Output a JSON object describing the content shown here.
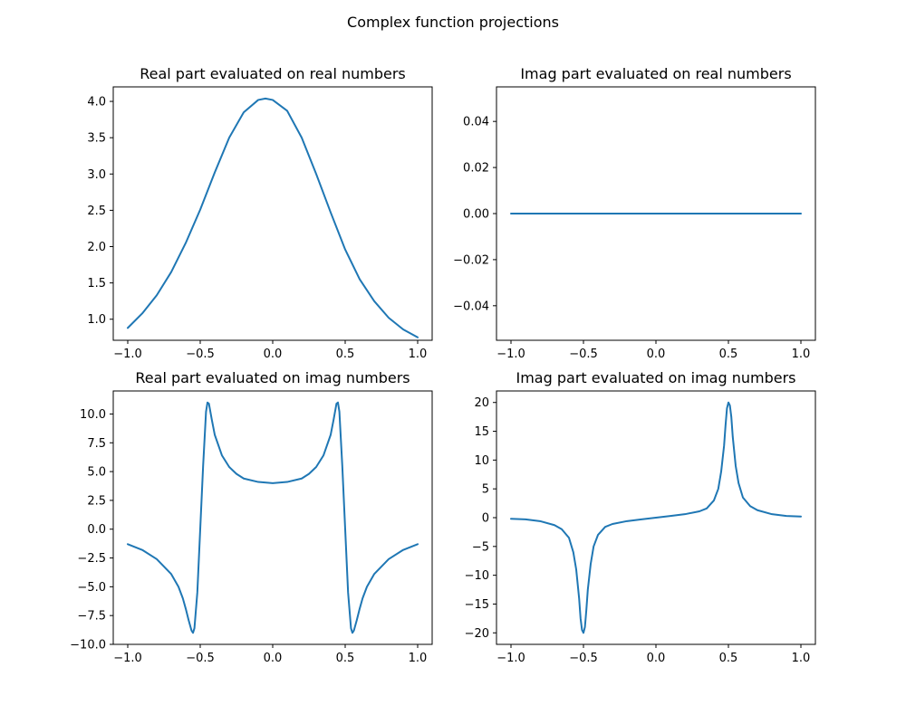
{
  "figure": {
    "suptitle": "Complex function projections"
  },
  "colors": {
    "line": "#1f77b4",
    "frame": "#000000",
    "background": "#ffffff"
  },
  "chart_data": [
    {
      "type": "line",
      "title": "Real part evaluated on real numbers",
      "xlabel": "",
      "ylabel": "",
      "grid": false,
      "xlim": [
        -1.1,
        1.1
      ],
      "ylim": [
        0.71,
        4.2
      ],
      "xticks": [
        -1.0,
        -0.5,
        0.0,
        0.5,
        1.0
      ],
      "xtick_labels": [
        "−1.0",
        "−0.5",
        "0.0",
        "0.5",
        "1.0"
      ],
      "yticks": [
        1.0,
        1.5,
        2.0,
        2.5,
        3.0,
        3.5,
        4.0
      ],
      "ytick_labels": [
        "1.0",
        "1.5",
        "2.0",
        "2.5",
        "3.0",
        "3.5",
        "4.0"
      ],
      "series": [
        {
          "x": [
            -1.0,
            -0.9,
            -0.8,
            -0.7,
            -0.6,
            -0.5,
            -0.4,
            -0.3,
            -0.2,
            -0.1,
            -0.05,
            0.0,
            0.1,
            0.2,
            0.3,
            0.4,
            0.5,
            0.6,
            0.7,
            0.8,
            0.9,
            1.0
          ],
          "values": [
            0.88,
            1.08,
            1.33,
            1.65,
            2.05,
            2.51,
            3.02,
            3.5,
            3.85,
            4.02,
            4.04,
            4.02,
            3.87,
            3.5,
            3.0,
            2.47,
            1.96,
            1.55,
            1.25,
            1.02,
            0.86,
            0.75
          ]
        }
      ]
    },
    {
      "type": "line",
      "title": "Imag part evaluated on real numbers",
      "xlabel": "",
      "ylabel": "",
      "grid": false,
      "xlim": [
        -1.1,
        1.1
      ],
      "ylim": [
        -0.055,
        0.055
      ],
      "xticks": [
        -1.0,
        -0.5,
        0.0,
        0.5,
        1.0
      ],
      "xtick_labels": [
        "−1.0",
        "−0.5",
        "0.0",
        "0.5",
        "1.0"
      ],
      "yticks": [
        -0.04,
        -0.02,
        0.0,
        0.02,
        0.04
      ],
      "ytick_labels": [
        "−0.04",
        "−0.02",
        "0.00",
        "0.02",
        "0.04"
      ],
      "series": [
        {
          "x": [
            -1.0,
            1.0
          ],
          "values": [
            0.0,
            0.0
          ]
        }
      ]
    },
    {
      "type": "line",
      "title": "Real part evaluated on imag numbers",
      "xlabel": "",
      "ylabel": "",
      "grid": false,
      "xlim": [
        -1.1,
        1.1
      ],
      "ylim": [
        -10.0,
        12.0
      ],
      "xticks": [
        -1.0,
        -0.5,
        0.0,
        0.5,
        1.0
      ],
      "xtick_labels": [
        "−1.0",
        "−0.5",
        "0.0",
        "0.5",
        "1.0"
      ],
      "yticks": [
        -10.0,
        -7.5,
        -5.0,
        -2.5,
        0.0,
        2.5,
        5.0,
        7.5,
        10.0
      ],
      "ytick_labels": [
        "−10.0",
        "−7.5",
        "−5.0",
        "−2.5",
        "0.0",
        "2.5",
        "5.0",
        "7.5",
        "10.0"
      ],
      "series": [
        {
          "x": [
            -1.0,
            -0.9,
            -0.8,
            -0.7,
            -0.65,
            -0.62,
            -0.6,
            -0.58,
            -0.56,
            -0.55,
            -0.54,
            -0.52,
            -0.5,
            -0.48,
            -0.46,
            -0.45,
            -0.44,
            -0.42,
            -0.4,
            -0.35,
            -0.3,
            -0.25,
            -0.2,
            -0.1,
            0.0,
            0.1,
            0.2,
            0.25,
            0.3,
            0.35,
            0.4,
            0.42,
            0.44,
            0.45,
            0.46,
            0.48,
            0.5,
            0.52,
            0.54,
            0.55,
            0.56,
            0.58,
            0.6,
            0.62,
            0.65,
            0.7,
            0.8,
            0.9,
            1.0
          ],
          "values": [
            -1.3,
            -1.8,
            -2.6,
            -3.9,
            -5.0,
            -6.0,
            -6.9,
            -7.9,
            -8.8,
            -9.0,
            -8.6,
            -5.5,
            0.0,
            5.5,
            10.2,
            11.0,
            10.9,
            9.5,
            8.2,
            6.4,
            5.4,
            4.8,
            4.4,
            4.1,
            4.0,
            4.1,
            4.4,
            4.8,
            5.4,
            6.4,
            8.2,
            9.5,
            10.9,
            11.0,
            10.2,
            5.5,
            0.0,
            -5.5,
            -8.6,
            -9.0,
            -8.8,
            -7.9,
            -6.9,
            -6.0,
            -5.0,
            -3.9,
            -2.6,
            -1.8,
            -1.3
          ]
        }
      ]
    },
    {
      "type": "line",
      "title": "Imag part evaluated on imag numbers",
      "xlabel": "",
      "ylabel": "",
      "grid": false,
      "xlim": [
        -1.1,
        1.1
      ],
      "ylim": [
        -22.0,
        22.0
      ],
      "xticks": [
        -1.0,
        -0.5,
        0.0,
        0.5,
        1.0
      ],
      "xtick_labels": [
        "−1.0",
        "−0.5",
        "0.0",
        "0.5",
        "1.0"
      ],
      "yticks": [
        -20,
        -15,
        -10,
        -5,
        0,
        5,
        10,
        15,
        20
      ],
      "ytick_labels": [
        "−20",
        "−15",
        "−10",
        "−5",
        "0",
        "5",
        "10",
        "15",
        "20"
      ],
      "series": [
        {
          "x": [
            -1.0,
            -0.9,
            -0.8,
            -0.7,
            -0.65,
            -0.6,
            -0.57,
            -0.55,
            -0.53,
            -0.52,
            -0.51,
            -0.5,
            -0.49,
            -0.48,
            -0.47,
            -0.45,
            -0.43,
            -0.4,
            -0.35,
            -0.3,
            -0.2,
            -0.1,
            0.0,
            0.1,
            0.2,
            0.3,
            0.35,
            0.4,
            0.43,
            0.45,
            0.47,
            0.48,
            0.49,
            0.5,
            0.51,
            0.52,
            0.53,
            0.55,
            0.57,
            0.6,
            0.65,
            0.7,
            0.8,
            0.9,
            1.0
          ],
          "values": [
            -0.2,
            -0.3,
            -0.6,
            -1.3,
            -2.0,
            -3.5,
            -6.0,
            -9.0,
            -14.0,
            -17.5,
            -19.5,
            -20.0,
            -19.0,
            -16.0,
            -12.5,
            -8.0,
            -5.0,
            -3.0,
            -1.6,
            -1.1,
            -0.6,
            -0.3,
            0.0,
            0.3,
            0.6,
            1.1,
            1.6,
            3.0,
            5.0,
            8.0,
            12.5,
            16.0,
            19.0,
            20.0,
            19.5,
            17.5,
            14.0,
            9.0,
            6.0,
            3.5,
            2.0,
            1.3,
            0.6,
            0.3,
            0.2
          ]
        }
      ]
    }
  ]
}
